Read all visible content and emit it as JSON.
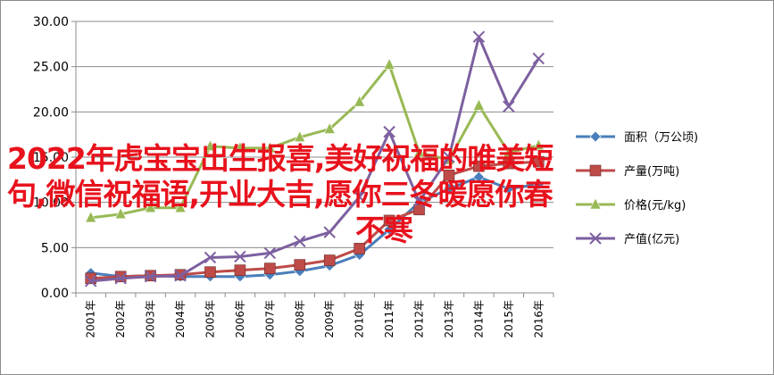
{
  "overlay_title": {
    "line1": "2022年虎宝宝出生报喜,美好祝福的唯美短",
    "line2": "句,微信祝福语,开业大吉,愿你三冬暖愿你春",
    "line3": "不寒"
  },
  "chart_data": {
    "type": "line",
    "x": [
      "2001年",
      "2002年",
      "2003年",
      "2004年",
      "2005年",
      "2006年",
      "2007年",
      "2008年",
      "2009年",
      "2010年",
      "2011年",
      "2012年",
      "2013年",
      "2014年",
      "2015年",
      "2016年"
    ],
    "ylim": [
      0,
      30
    ],
    "yticks": [
      "0.00",
      "5.00",
      "10.00",
      "15.00",
      "20.00",
      "25.00",
      "30.00"
    ],
    "grid": true,
    "legend_position": "right",
    "series": [
      {
        "name": "面积（万公顷)",
        "color": "#4a7ebb",
        "marker": "diamond",
        "values": [
          2.2,
          1.8,
          1.9,
          1.8,
          1.8,
          1.8,
          2.0,
          2.4,
          3.0,
          4.2,
          7.0,
          10.0,
          11.5,
          12.8,
          11.5,
          12.0
        ]
      },
      {
        "name": "产量(万吨)",
        "color": "#be4b48",
        "marker": "square",
        "values": [
          1.6,
          1.8,
          1.9,
          2.0,
          2.3,
          2.5,
          2.7,
          3.1,
          3.6,
          4.9,
          8.0,
          9.2,
          13.0,
          14.0,
          14.3,
          14.5
        ]
      },
      {
        "name": "价格(元/kg)",
        "color": "#98b954",
        "marker": "triangle",
        "values": [
          8.3,
          8.7,
          9.4,
          9.4,
          16.2,
          16.0,
          16.0,
          17.2,
          18.1,
          21.1,
          25.2,
          15.5,
          14.7,
          20.7,
          15.5,
          16.3
        ]
      },
      {
        "name": "产值(亿元)",
        "color": "#7d60a0",
        "marker": "x",
        "values": [
          1.3,
          1.6,
          1.8,
          1.9,
          3.9,
          4.0,
          4.4,
          5.7,
          6.7,
          10.6,
          17.8,
          10.1,
          15.0,
          28.3,
          20.6,
          25.9
        ]
      }
    ]
  }
}
